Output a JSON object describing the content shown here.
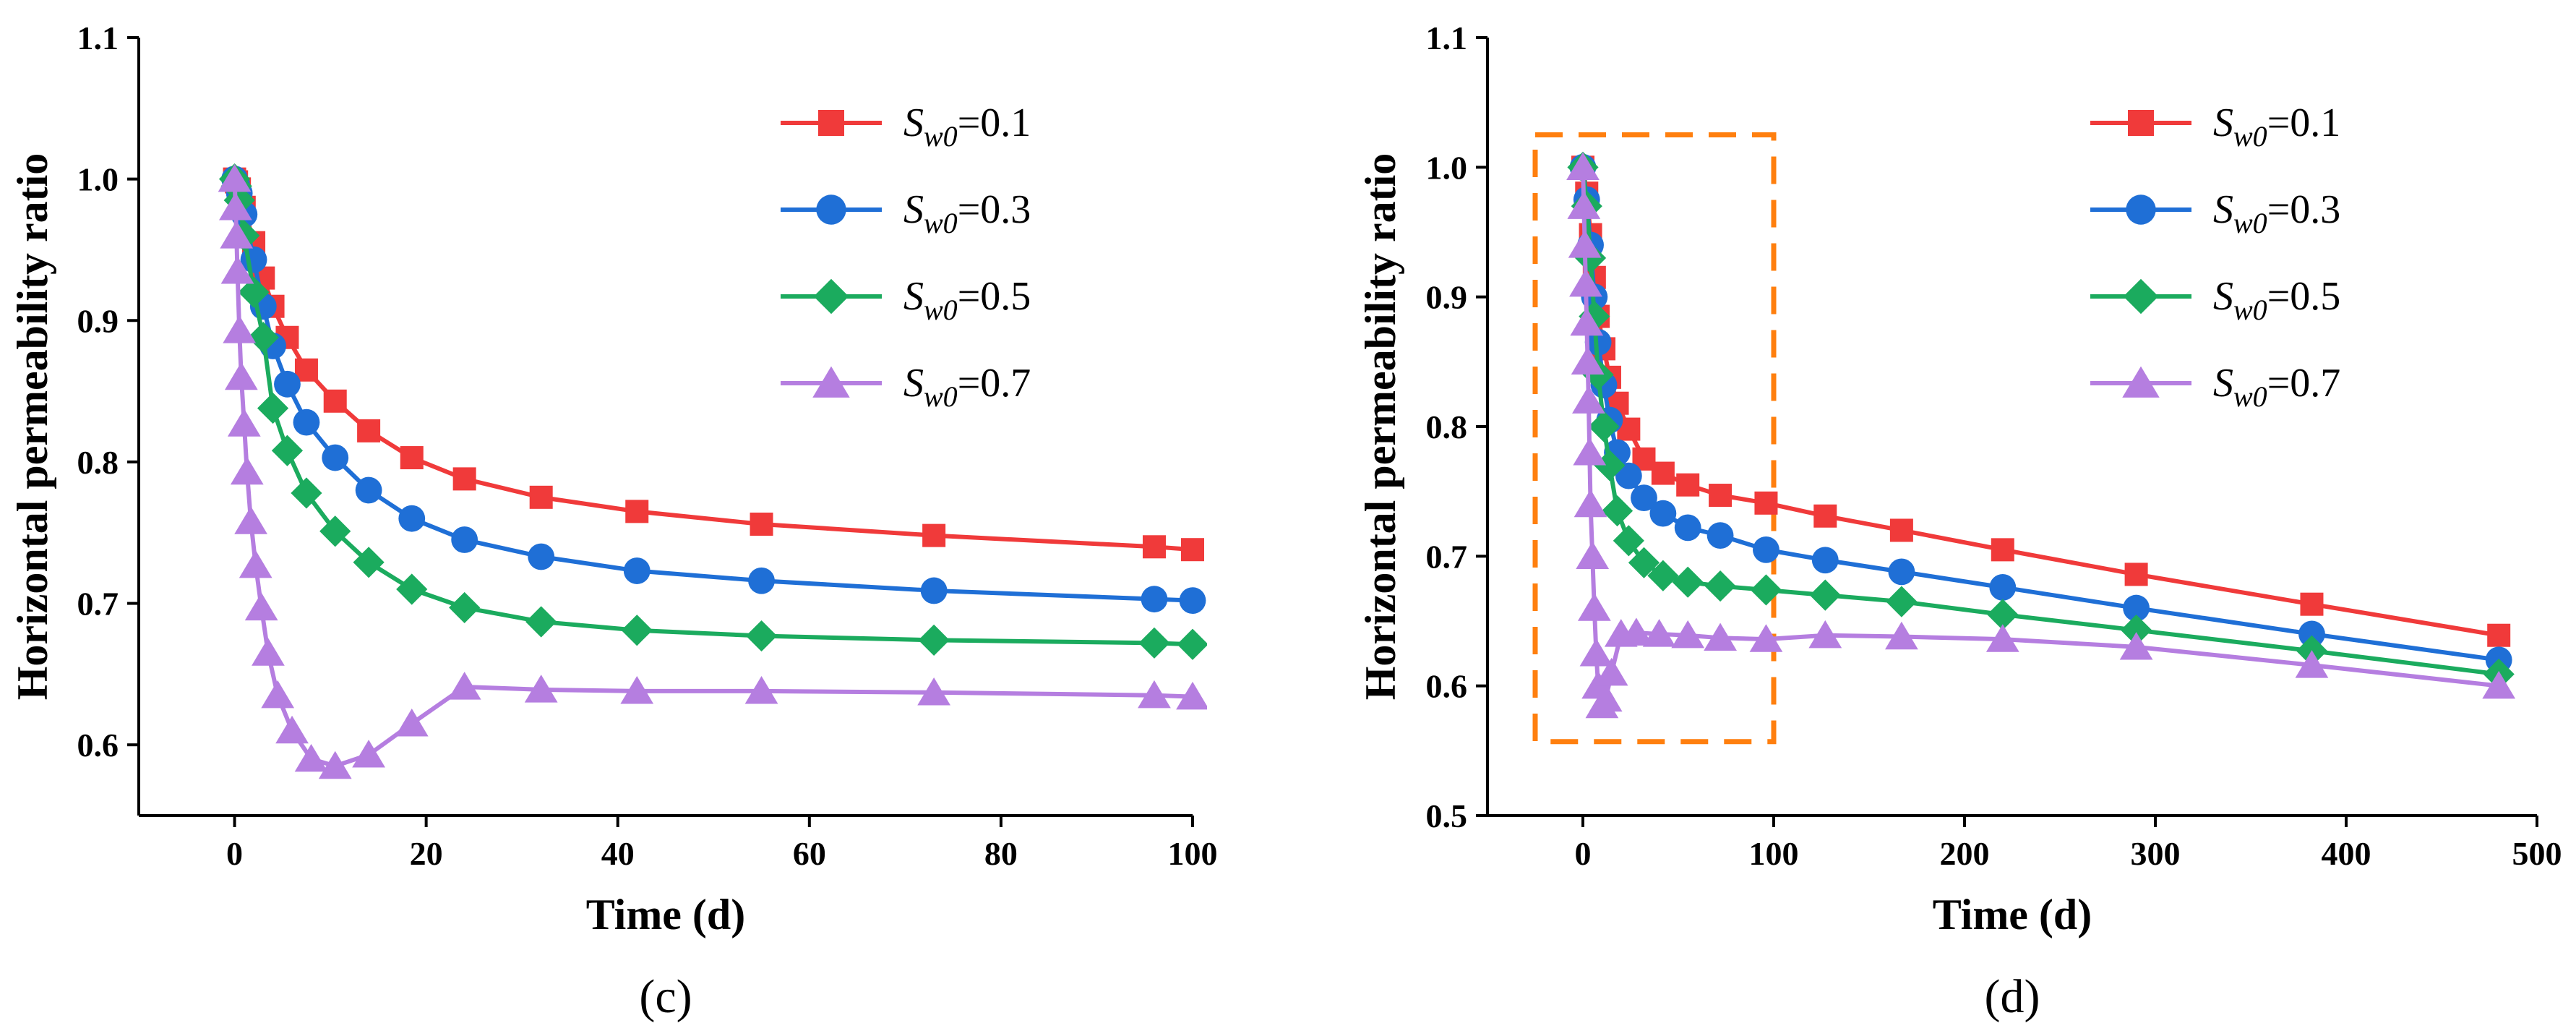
{
  "chart_data": [
    {
      "type": "line",
      "panel": "(c)",
      "xlabel": "Time (d)",
      "ylabel": "Horizontal permeability ratio",
      "xlim": [
        -10,
        100
      ],
      "ylim": [
        0.55,
        1.1
      ],
      "xticks": [
        "0",
        "20",
        "40",
        "60",
        "80",
        "100"
      ],
      "yticks": [
        "0.6",
        "0.7",
        "0.8",
        "0.9",
        "1.0",
        "1.1"
      ],
      "legend_position": "top-right",
      "legend_symbol": "S",
      "legend_sub": "w0",
      "series": [
        {
          "name": "Sw0=0.1",
          "value": "=0.1",
          "color": "#f03a3a",
          "marker": "square",
          "x": [
            0,
            0.2,
            0.5,
            1,
            2,
            3,
            4,
            5.5,
            7.5,
            10.5,
            14,
            18.5,
            24,
            32,
            42,
            55,
            73,
            96,
            100
          ],
          "y": [
            1.0,
            0.998,
            0.993,
            0.98,
            0.955,
            0.93,
            0.91,
            0.888,
            0.865,
            0.843,
            0.822,
            0.803,
            0.788,
            0.775,
            0.765,
            0.756,
            0.748,
            0.74,
            0.738
          ]
        },
        {
          "name": "Sw0=0.3",
          "value": "=0.3",
          "color": "#1f6fd6",
          "marker": "circle",
          "x": [
            0,
            0.2,
            0.5,
            1,
            2,
            3,
            4,
            5.5,
            7.5,
            10.5,
            14,
            18.5,
            24,
            32,
            42,
            55,
            73,
            96,
            100
          ],
          "y": [
            1.0,
            0.997,
            0.99,
            0.975,
            0.943,
            0.91,
            0.882,
            0.855,
            0.828,
            0.803,
            0.78,
            0.76,
            0.745,
            0.733,
            0.723,
            0.716,
            0.709,
            0.703,
            0.702
          ]
        },
        {
          "name": "Sw0=0.5",
          "value": "=0.5",
          "color": "#1bab5e",
          "marker": "diamond",
          "x": [
            0,
            0.2,
            0.5,
            1,
            2,
            3,
            4,
            5.5,
            7.5,
            10.5,
            14,
            18.5,
            24,
            32,
            42,
            55,
            73,
            96,
            100
          ],
          "y": [
            1.0,
            0.995,
            0.985,
            0.96,
            0.92,
            0.888,
            0.838,
            0.808,
            0.778,
            0.751,
            0.729,
            0.71,
            0.697,
            0.687,
            0.681,
            0.677,
            0.674,
            0.672,
            0.671
          ]
        },
        {
          "name": "Sw0=0.7",
          "value": "=0.7",
          "color": "#b57ee0",
          "marker": "triangle",
          "x": [
            0,
            0.1,
            0.2,
            0.3,
            0.5,
            0.7,
            1,
            1.3,
            1.7,
            2.2,
            2.8,
            3.5,
            4.5,
            6,
            8,
            10.5,
            14,
            18.5,
            24,
            32,
            42,
            55,
            73,
            96,
            100
          ],
          "y": [
            1.0,
            0.98,
            0.96,
            0.935,
            0.893,
            0.86,
            0.827,
            0.793,
            0.758,
            0.727,
            0.697,
            0.665,
            0.635,
            0.61,
            0.59,
            0.585,
            0.593,
            0.615,
            0.641,
            0.639,
            0.638,
            0.638,
            0.637,
            0.635,
            0.634
          ]
        }
      ]
    },
    {
      "type": "line",
      "panel": "(d)",
      "xlabel": "Time (d)",
      "ylabel": "Horizontal permeability ratio",
      "xlim": [
        -50,
        500
      ],
      "ylim": [
        0.5,
        1.1
      ],
      "xticks": [
        "0",
        "100",
        "200",
        "300",
        "400",
        "500"
      ],
      "yticks": [
        "0.5",
        "0.6",
        "0.7",
        "0.8",
        "0.9",
        "1.0",
        "1.1"
      ],
      "legend_position": "top-right",
      "legend_symbol": "S",
      "legend_sub": "w0",
      "highlight_box": {
        "x_range": [
          -25,
          100
        ],
        "y_range": [
          0.557,
          1.025
        ],
        "color": "#ff7f0e"
      },
      "series": [
        {
          "name": "Sw0=0.1",
          "value": "=0.1",
          "color": "#f03a3a",
          "marker": "square",
          "x": [
            0,
            2,
            4,
            6,
            8,
            11,
            14,
            18,
            24,
            32,
            42,
            55,
            72,
            96,
            127,
            167,
            220,
            290,
            382,
            480
          ],
          "y": [
            1.0,
            0.98,
            0.948,
            0.915,
            0.885,
            0.86,
            0.838,
            0.818,
            0.798,
            0.775,
            0.764,
            0.755,
            0.747,
            0.741,
            0.731,
            0.72,
            0.705,
            0.686,
            0.663,
            0.639
          ]
        },
        {
          "name": "Sw0=0.3",
          "value": "=0.3",
          "color": "#1f6fd6",
          "marker": "circle",
          "x": [
            0,
            2,
            4,
            6,
            8,
            11,
            14,
            18,
            24,
            32,
            42,
            55,
            72,
            96,
            127,
            167,
            220,
            290,
            382,
            480
          ],
          "y": [
            1.0,
            0.975,
            0.94,
            0.9,
            0.865,
            0.832,
            0.805,
            0.78,
            0.762,
            0.745,
            0.733,
            0.722,
            0.716,
            0.705,
            0.697,
            0.688,
            0.676,
            0.66,
            0.64,
            0.62
          ]
        },
        {
          "name": "Sw0=0.5",
          "value": "=0.5",
          "color": "#1bab5e",
          "marker": "diamond",
          "x": [
            0,
            2,
            4,
            6,
            8,
            11,
            14,
            18,
            24,
            32,
            42,
            55,
            72,
            96,
            127,
            167,
            220,
            290,
            382,
            480
          ],
          "y": [
            1.0,
            0.97,
            0.93,
            0.885,
            0.84,
            0.8,
            0.77,
            0.735,
            0.712,
            0.695,
            0.685,
            0.68,
            0.677,
            0.674,
            0.67,
            0.665,
            0.655,
            0.643,
            0.627,
            0.609
          ]
        },
        {
          "name": "Sw0=0.7",
          "value": "=0.7",
          "color": "#b57ee0",
          "marker": "triangle",
          "x": [
            0,
            0.5,
            1,
            1.5,
            2,
            2.5,
            3,
            3.5,
            4,
            5,
            6,
            7,
            8,
            10,
            12,
            15,
            20,
            28,
            40,
            55,
            72,
            96,
            127,
            167,
            220,
            290,
            382,
            480
          ],
          "y": [
            1.0,
            0.97,
            0.94,
            0.91,
            0.88,
            0.85,
            0.82,
            0.78,
            0.74,
            0.7,
            0.66,
            0.625,
            0.6,
            0.585,
            0.59,
            0.61,
            0.64,
            0.641,
            0.64,
            0.639,
            0.637,
            0.636,
            0.639,
            0.638,
            0.636,
            0.63,
            0.616,
            0.6
          ]
        }
      ]
    }
  ]
}
